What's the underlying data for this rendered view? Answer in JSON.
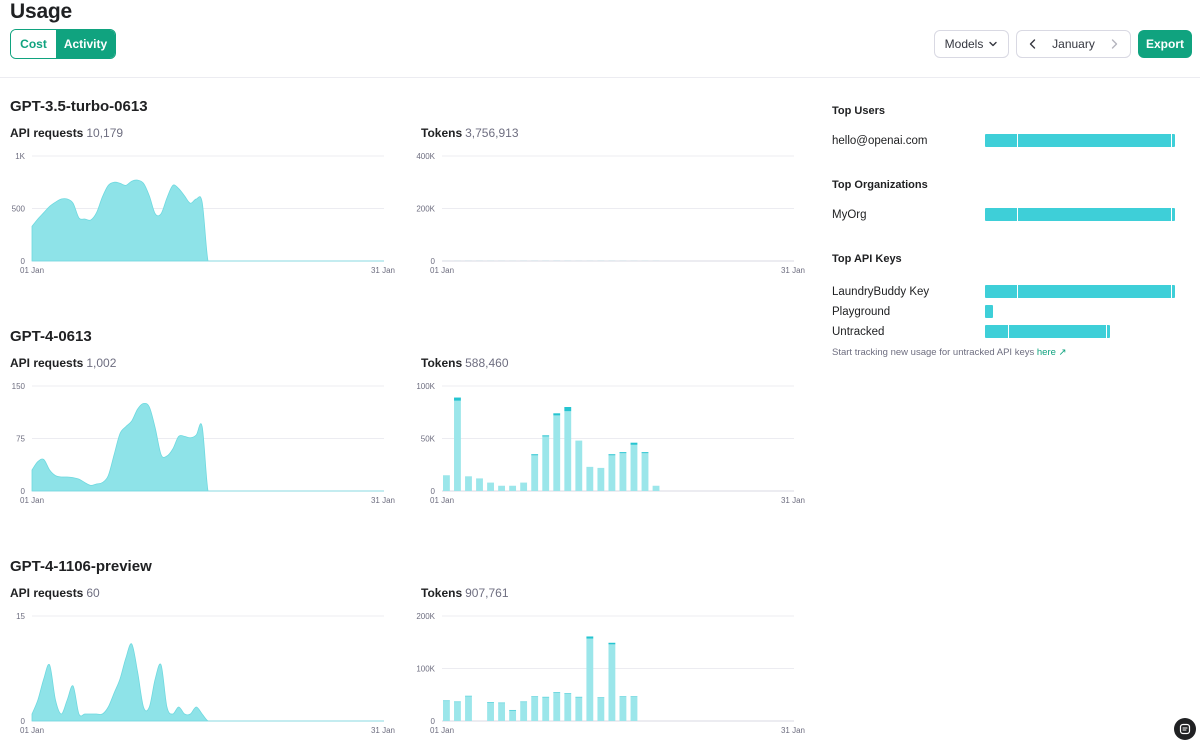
{
  "header": {
    "title": "Usage",
    "tabs": [
      {
        "label": "Cost"
      },
      {
        "label": "Activity"
      }
    ],
    "models_label": "Models",
    "month": "January",
    "export_label": "Export"
  },
  "models": [
    {
      "name": "GPT-3.5-turbo-0613",
      "requests": {
        "label": "API requests",
        "value": "10,179",
        "y_ticks": [
          "1K",
          "500",
          "0"
        ],
        "x_ticks": [
          "01 Jan",
          "31 Jan"
        ]
      },
      "tokens": {
        "label": "Tokens",
        "value": "3,756,913",
        "y_ticks": [
          "400K",
          "200K",
          "0"
        ],
        "x_ticks": [
          "01 Jan",
          "31 Jan"
        ]
      }
    },
    {
      "name": "GPT-4-0613",
      "requests": {
        "label": "API requests",
        "value": "1,002",
        "y_ticks": [
          "150",
          "75",
          "0"
        ],
        "x_ticks": [
          "01 Jan",
          "31 Jan"
        ]
      },
      "tokens": {
        "label": "Tokens",
        "value": "588,460",
        "y_ticks": [
          "100K",
          "50K",
          "0"
        ],
        "x_ticks": [
          "01 Jan",
          "31 Jan"
        ]
      }
    },
    {
      "name": "GPT-4-1106-preview",
      "requests": {
        "label": "API requests",
        "value": "60",
        "y_ticks": [
          "15",
          "0"
        ],
        "x_ticks": [
          "01 Jan",
          "31 Jan"
        ]
      },
      "tokens": {
        "label": "Tokens",
        "value": "907,761",
        "y_ticks": [
          "200K",
          "100K",
          "0"
        ],
        "x_ticks": [
          "01 Jan",
          "31 Jan"
        ]
      }
    }
  ],
  "chart_data": [
    {
      "type": "area",
      "series": [
        {
          "values": [
            330,
            400,
            460,
            520,
            560,
            590,
            590,
            550,
            410,
            400,
            390,
            460,
            610,
            720,
            750,
            740,
            720,
            760,
            770,
            740,
            620,
            450,
            450,
            600,
            720,
            690,
            620,
            550,
            590,
            560,
            0,
            0,
            0,
            0,
            0,
            0,
            0,
            0,
            0,
            0,
            0,
            0,
            0,
            0,
            0,
            0,
            0,
            0,
            0,
            0,
            0,
            0,
            0,
            0,
            0,
            0,
            0,
            0,
            0,
            0,
            0
          ]
        }
      ],
      "ylim": [
        0,
        1000
      ],
      "y_ticks": [
        0,
        500,
        1000
      ]
    },
    {
      "type": "bar",
      "categories": [
        "1",
        "2",
        "3",
        "4",
        "5",
        "6",
        "7",
        "8",
        "9",
        "10",
        "11",
        "12",
        "13",
        "14",
        "15",
        "16",
        "17",
        "18",
        "19",
        "20",
        "21",
        "22",
        "23",
        "24",
        "25",
        "26",
        "27",
        "28",
        "29",
        "30",
        "31"
      ],
      "series": [
        {
          "values": [
            40,
            45,
            50,
            55,
            50,
            40,
            40,
            45,
            50,
            50,
            50,
            45,
            40,
            50,
            50,
            45,
            40,
            40,
            40,
            45,
            45,
            0,
            0,
            0,
            0,
            0,
            0,
            0,
            0,
            0,
            0
          ]
        },
        {
          "values": [
            80,
            120,
            150,
            165,
            160,
            130,
            125,
            170,
            210,
            210,
            230,
            180,
            130,
            140,
            220,
            185,
            175,
            165,
            155,
            160,
            0,
            0,
            0,
            0,
            0,
            0,
            0,
            0,
            0,
            0,
            0
          ]
        }
      ],
      "stacked": true,
      "ylim": [
        0,
        400000
      ],
      "y_ticks": [
        0,
        200000,
        400000
      ]
    },
    {
      "type": "area",
      "series": [
        {
          "values": [
            30,
            42,
            45,
            30,
            22,
            20,
            20,
            19,
            17,
            12,
            8,
            10,
            12,
            22,
            52,
            82,
            92,
            100,
            117,
            125,
            120,
            90,
            52,
            50,
            60,
            78,
            78,
            76,
            80,
            92,
            0,
            0,
            0,
            0,
            0,
            0,
            0,
            0,
            0,
            0,
            0,
            0,
            0,
            0,
            0,
            0,
            0,
            0,
            0,
            0,
            0,
            0,
            0,
            0,
            0,
            0,
            0,
            0,
            0,
            0,
            0
          ]
        }
      ],
      "ylim": [
        0,
        150
      ],
      "y_ticks": [
        0,
        75,
        150
      ]
    },
    {
      "type": "bar",
      "categories": [
        "1",
        "2",
        "3",
        "4",
        "5",
        "6",
        "7",
        "8",
        "9",
        "10",
        "11",
        "12",
        "13",
        "14",
        "15",
        "16",
        "17",
        "18",
        "19",
        "20",
        "21",
        "22",
        "23",
        "24",
        "25",
        "26",
        "27",
        "28",
        "29",
        "30",
        "31"
      ],
      "series": [
        {
          "values": [
            15000,
            86000,
            14000,
            12000,
            8000,
            5000,
            5000,
            8000,
            34000,
            52000,
            72000,
            76000,
            48000,
            23000,
            22000,
            34000,
            36000,
            44000,
            36000,
            5000,
            0,
            0,
            0,
            0,
            0,
            0,
            0,
            0,
            0,
            0,
            0
          ]
        },
        {
          "values": [
            0,
            3000,
            0,
            0,
            0,
            0,
            0,
            0,
            1000,
            1000,
            2000,
            4000,
            0,
            0,
            0,
            1000,
            1000,
            2000,
            1000,
            0,
            0,
            0,
            0,
            0,
            0,
            0,
            0,
            0,
            0,
            0,
            0
          ]
        }
      ],
      "stacked": true,
      "ylim": [
        0,
        100000
      ],
      "y_ticks": [
        0,
        50000,
        100000
      ]
    },
    {
      "type": "area",
      "series": [
        {
          "values": [
            1,
            3,
            6,
            8,
            3,
            1,
            3,
            5,
            1,
            1,
            1,
            1,
            1,
            2,
            4,
            6,
            9,
            11,
            7,
            2,
            2,
            6,
            8,
            2,
            1,
            2,
            1,
            1,
            2,
            1,
            0,
            0,
            0,
            0,
            0,
            0,
            0,
            0,
            0,
            0,
            0,
            0,
            0,
            0,
            0,
            0,
            0,
            0,
            0,
            0,
            0,
            0,
            0,
            0,
            0,
            0,
            0,
            0,
            0,
            0,
            0
          ]
        }
      ],
      "ylim": [
        0,
        15
      ],
      "y_ticks": [
        0,
        15
      ]
    },
    {
      "type": "bar",
      "categories": [
        "1",
        "2",
        "3",
        "4",
        "5",
        "6",
        "7",
        "8",
        "9",
        "10",
        "11",
        "12",
        "13",
        "14",
        "15",
        "16",
        "17",
        "18",
        "19",
        "20",
        "21",
        "22",
        "23",
        "24",
        "25",
        "26",
        "27",
        "28",
        "29",
        "30",
        "31"
      ],
      "series": [
        {
          "values": [
            38000,
            36000,
            47000,
            0,
            35000,
            34000,
            20000,
            36000,
            46000,
            45000,
            54000,
            52000,
            45000,
            157000,
            44000,
            146000,
            46000,
            46000,
            0,
            0,
            0,
            0,
            0,
            0,
            0,
            0,
            0,
            0,
            0,
            0,
            0
          ]
        },
        {
          "values": [
            1000,
            1000,
            1000,
            0,
            1000,
            1000,
            1000,
            1000,
            1000,
            1000,
            1000,
            1000,
            1000,
            4000,
            1000,
            3000,
            1000,
            1000,
            0,
            0,
            0,
            0,
            0,
            0,
            0,
            0,
            0,
            0,
            0,
            0,
            0
          ]
        }
      ],
      "stacked": true,
      "ylim": [
        0,
        200000
      ],
      "y_ticks": [
        0,
        100000,
        200000
      ]
    }
  ],
  "sidebar": {
    "sections": [
      {
        "title": "Top Users",
        "rows": [
          {
            "label": "hello@openai.com",
            "value": 1.0,
            "split": 0.17
          }
        ]
      },
      {
        "title": "Top Organizations",
        "rows": [
          {
            "label": "MyOrg",
            "value": 1.0,
            "split": 0.17
          }
        ]
      },
      {
        "title": "Top API Keys",
        "rows": [
          {
            "label": "LaundryBuddy Key",
            "value": 1.0,
            "split": 0.17
          },
          {
            "label": "Playground",
            "value": 0.04,
            "split": 0
          },
          {
            "label": "Untracked",
            "value": 0.66,
            "split": 0.12
          }
        ]
      }
    ],
    "track_note": "Start tracking new usage for untracked API keys",
    "track_link": "here ↗"
  },
  "colors": {
    "accent": "#10a37f",
    "area_fill": "#8ee3e8",
    "bar_top": "#25c4d0",
    "bar_base": "#9be6ea",
    "usage_bar": "#3ecfd8"
  }
}
